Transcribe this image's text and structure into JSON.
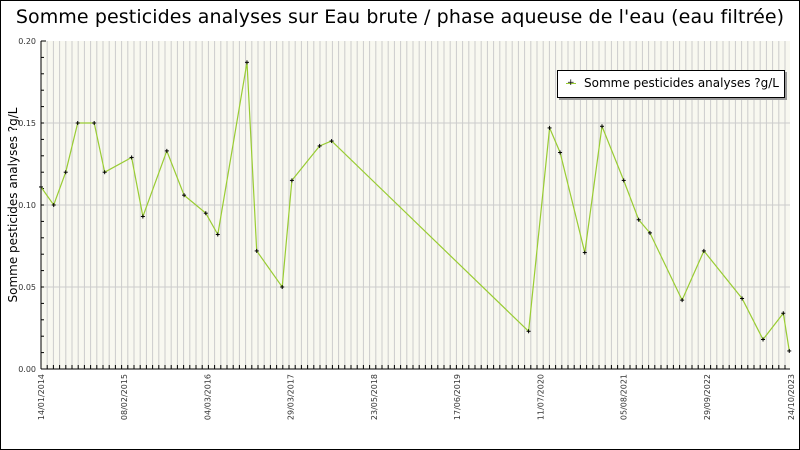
{
  "chart_data": {
    "type": "line",
    "title": "Somme pesticides analyses sur Eau brute / phase aqueuse de l'eau (eau filtrée)",
    "xlabel": "",
    "ylabel": "Somme pesticides analyses ?g/L",
    "ylim": [
      0,
      0.2
    ],
    "yticks": [
      "0.00",
      "0.05",
      "0.10",
      "0.15",
      "0.20"
    ],
    "xtick_labels": [
      "14/01/2014",
      "08/02/2015",
      "04/03/2016",
      "29/03/2017",
      "23/05/2018",
      "17/06/2019",
      "11/07/2020",
      "05/08/2021",
      "29/09/2022",
      "24/10/2023"
    ],
    "grid": true,
    "legend_position": "top-right",
    "series": [
      {
        "name": "Somme pesticides analyses ?g/L",
        "color": "#99cc33",
        "marker": "+",
        "points": [
          {
            "x": 0.0,
            "y": 0.111
          },
          {
            "x": 0.017,
            "y": 0.1
          },
          {
            "x": 0.033,
            "y": 0.12
          },
          {
            "x": 0.049,
            "y": 0.15
          },
          {
            "x": 0.071,
            "y": 0.15
          },
          {
            "x": 0.085,
            "y": 0.12
          },
          {
            "x": 0.121,
            "y": 0.129
          },
          {
            "x": 0.136,
            "y": 0.093
          },
          {
            "x": 0.168,
            "y": 0.133
          },
          {
            "x": 0.191,
            "y": 0.106
          },
          {
            "x": 0.22,
            "y": 0.095
          },
          {
            "x": 0.236,
            "y": 0.082
          },
          {
            "x": 0.275,
            "y": 0.187
          },
          {
            "x": 0.288,
            "y": 0.072
          },
          {
            "x": 0.322,
            "y": 0.05
          },
          {
            "x": 0.335,
            "y": 0.115
          },
          {
            "x": 0.372,
            "y": 0.136
          },
          {
            "x": 0.388,
            "y": 0.139
          },
          {
            "x": 0.651,
            "y": 0.023
          },
          {
            "x": 0.679,
            "y": 0.147
          },
          {
            "x": 0.693,
            "y": 0.132
          },
          {
            "x": 0.726,
            "y": 0.071
          },
          {
            "x": 0.749,
            "y": 0.148
          },
          {
            "x": 0.778,
            "y": 0.115
          },
          {
            "x": 0.798,
            "y": 0.091
          },
          {
            "x": 0.813,
            "y": 0.083
          },
          {
            "x": 0.856,
            "y": 0.042
          },
          {
            "x": 0.885,
            "y": 0.072
          },
          {
            "x": 0.936,
            "y": 0.043
          },
          {
            "x": 0.964,
            "y": 0.018
          },
          {
            "x": 0.991,
            "y": 0.034
          },
          {
            "x": 0.999,
            "y": 0.011
          }
        ]
      }
    ]
  },
  "legend": {
    "label": "Somme pesticides analyses ?g/L"
  },
  "colors": {
    "plot_background": "#f8f8f0",
    "grid": "#cccccc",
    "line": "#99cc33",
    "marker": "#000000"
  }
}
